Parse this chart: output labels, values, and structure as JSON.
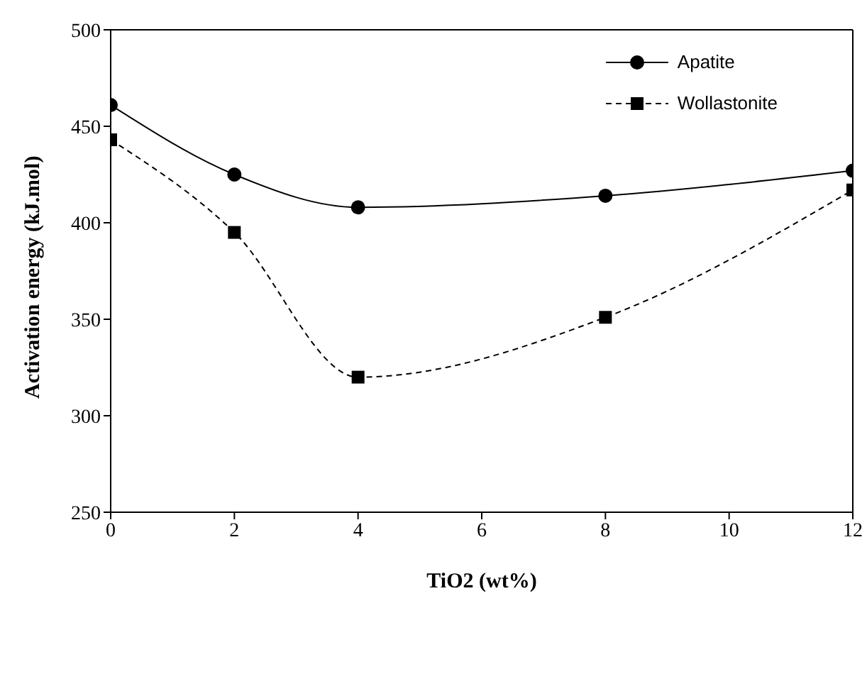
{
  "chart_data": {
    "type": "line",
    "xlabel": "TiO2 (wt%)",
    "ylabel": "Activation energy (kJ.mol)",
    "x": [
      0,
      2,
      4,
      8,
      12
    ],
    "series": [
      {
        "name": "Apatite",
        "color": "#000000",
        "marker": "circle",
        "line_style": "solid",
        "values": [
          461,
          425,
          408,
          414,
          427
        ]
      },
      {
        "name": "Wollastonite",
        "color": "#000000",
        "marker": "square",
        "line_style": "dashed",
        "values": [
          443,
          395,
          320,
          351,
          417
        ]
      }
    ],
    "xlim": [
      0,
      12
    ],
    "xticks": [
      0,
      2,
      4,
      6,
      8,
      10,
      12
    ],
    "ylim": [
      250,
      500
    ],
    "yticks": [
      250,
      300,
      350,
      400,
      450,
      500
    ],
    "grid": false,
    "legend": "top right"
  }
}
